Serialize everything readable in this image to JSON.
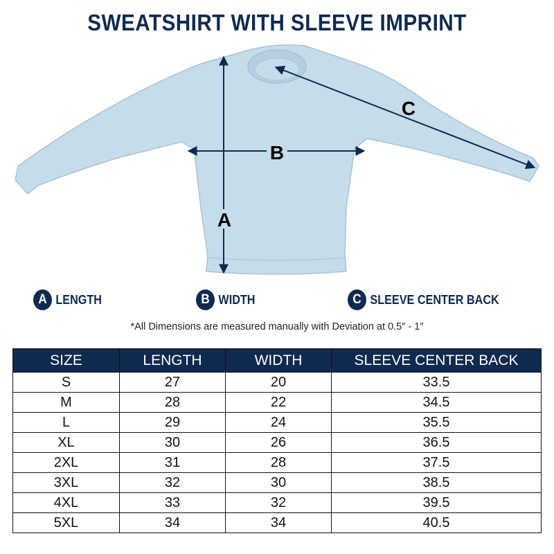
{
  "title": "SWEATSHIRT WITH SLEEVE IMPRINT",
  "diagram": {
    "label_a": "A",
    "label_b": "B",
    "label_c": "C",
    "garment_color": "#c5dcea",
    "accent_color": "#0f2a4f"
  },
  "legend": [
    {
      "badge": "A",
      "label": "LENGTH"
    },
    {
      "badge": "B",
      "label": "WIDTH"
    },
    {
      "badge": "C",
      "label": "SLEEVE CENTER BACK"
    }
  ],
  "note": "*All Dimensions are measured manually with Deviation at 0.5″ - 1″",
  "table": {
    "headers": [
      "SIZE",
      "LENGTH",
      "WIDTH",
      "SLEEVE CENTER BACK"
    ],
    "rows": [
      [
        "S",
        "27",
        "20",
        "33.5"
      ],
      [
        "M",
        "28",
        "22",
        "34.5"
      ],
      [
        "L",
        "29",
        "24",
        "35.5"
      ],
      [
        "XL",
        "30",
        "26",
        "36.5"
      ],
      [
        "2XL",
        "31",
        "28",
        "37.5"
      ],
      [
        "3XL",
        "32",
        "30",
        "38.5"
      ],
      [
        "4XL",
        "33",
        "32",
        "39.5"
      ],
      [
        "5XL",
        "34",
        "34",
        "40.5"
      ]
    ]
  }
}
